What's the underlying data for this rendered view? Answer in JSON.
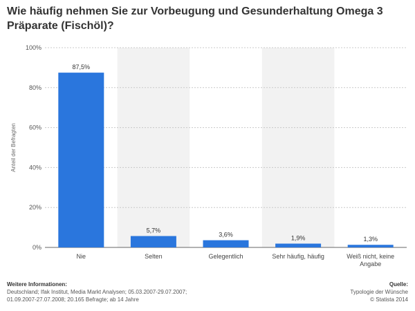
{
  "chart_data": {
    "type": "bar",
    "title": "Wie häufig nehmen Sie zur Vorbeugung und Gesunderhaltung Omega 3 Präparate (Fischöl)?",
    "categories": [
      "Nie",
      "Selten",
      "Gelegentlich",
      "Sehr häufig, häufig",
      "Weiß nicht, keine Angabe"
    ],
    "values": [
      87.5,
      5.7,
      3.6,
      1.9,
      1.3
    ],
    "value_labels": [
      "87,5%",
      "5,7%",
      "3,6%",
      "1,9%",
      "1,3%"
    ],
    "ylabel": "Anteil der Befragten",
    "xlabel": "",
    "ylim": [
      0,
      100
    ],
    "yticks": [
      0,
      20,
      40,
      60,
      80,
      100
    ],
    "ytick_labels": [
      "0%",
      "20%",
      "40%",
      "60%",
      "80%",
      "100%"
    ],
    "bar_color": "#2a76dd",
    "shade_color": "#f2f2f2",
    "grid": true
  },
  "footer": {
    "info_heading": "Weitere Informationen:",
    "info_text": "Deutschland; Ifak Institut, Media Markt Analysen; 05.03.2007-29.07.2007; 01.09.2007-27.07.2008; 20.165 Befragte; ab 14 Jahre",
    "source_heading": "Quelle:",
    "source_line1": "Typologie der Wünsche",
    "source_line2": "© Statista 2014"
  }
}
